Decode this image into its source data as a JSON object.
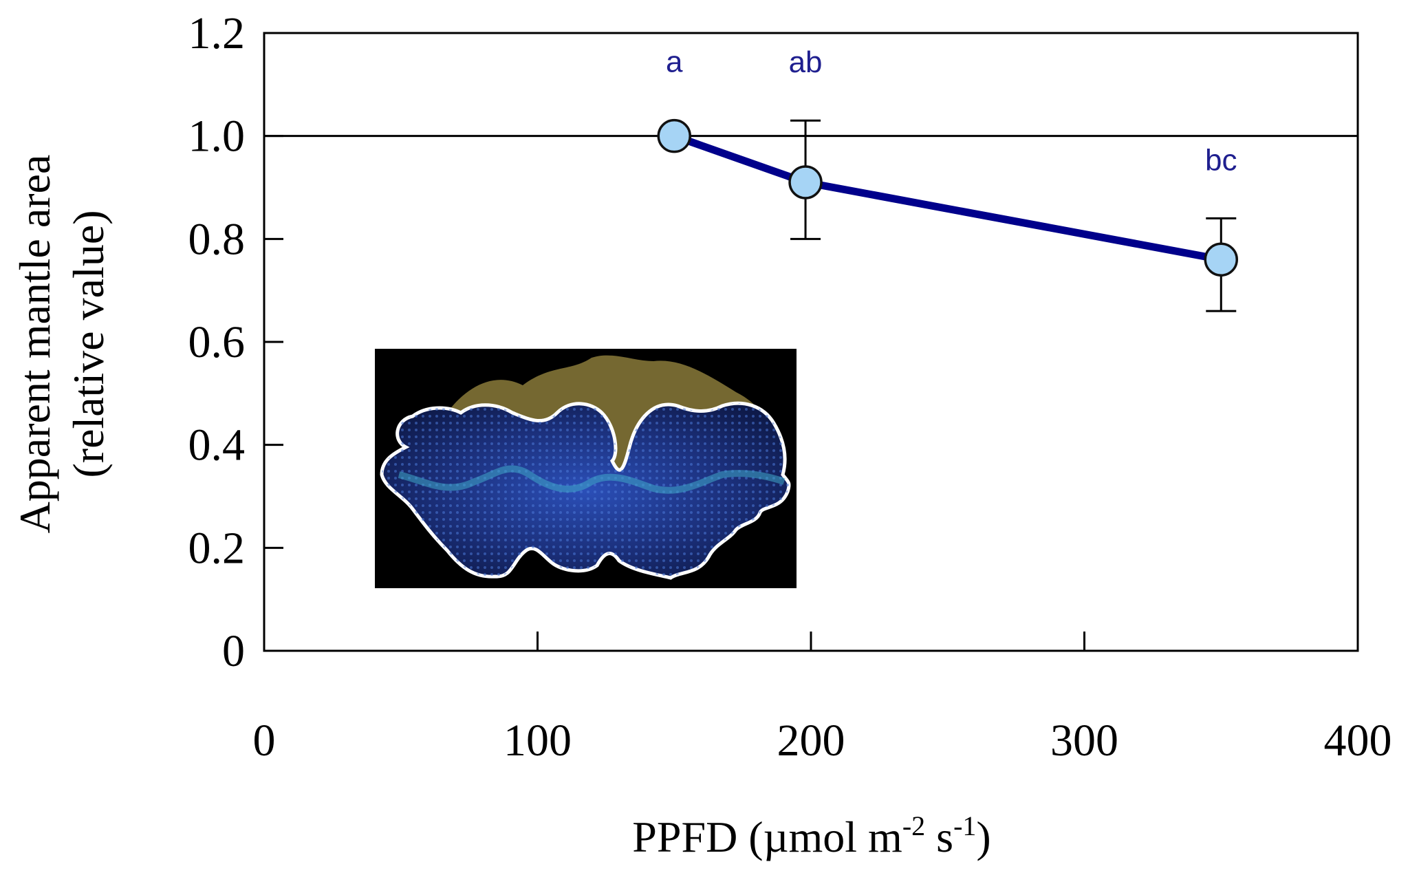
{
  "chart_data": {
    "type": "line",
    "xlabel": "PPFD (µmol m",
    "xlabel_sup1": "-2",
    "xlabel_mid": " s",
    "xlabel_sup2": "-1",
    "xlabel_end": ")",
    "ylabel_line1": "Apparent mantle area",
    "ylabel_line2": "(relative value)",
    "xlim": [
      0,
      400
    ],
    "ylim": [
      0,
      1.2
    ],
    "x_ticks": [
      0,
      100,
      200,
      300,
      400
    ],
    "x_tick_labels": [
      "0",
      "100",
      "200",
      "300",
      "400"
    ],
    "y_ticks": [
      0,
      0.2,
      0.4,
      0.6,
      0.8,
      1.0,
      1.2
    ],
    "y_tick_labels": [
      "0",
      "0.2",
      "0.4",
      "0.6",
      "0.8",
      "1.0",
      "1.2"
    ],
    "reference_line_y": 1.0,
    "series": [
      {
        "x": [
          150,
          198,
          350
        ],
        "y": [
          1.0,
          0.91,
          0.76
        ],
        "err_upper": [
          1.0,
          1.03,
          0.84
        ],
        "err_lower": [
          1.0,
          0.8,
          0.66
        ],
        "labels": [
          "a",
          "ab",
          "bc"
        ],
        "line_color": "#00008b",
        "marker_fill": "#a6d4f5",
        "label_color": "#1f1f8f"
      }
    ],
    "inset": "photo of giant clam mantle outlined in white",
    "grid": false
  }
}
